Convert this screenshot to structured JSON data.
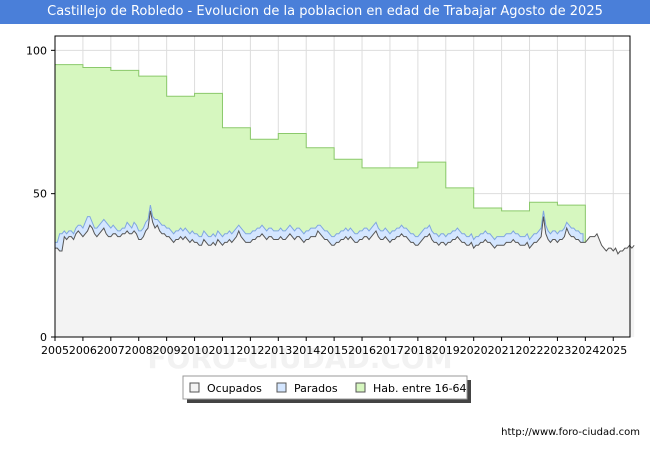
{
  "chart_data": {
    "type": "area",
    "title": "Castillejo de Robledo - Evolucion de la poblacion en edad de Trabajar Agosto de 2025",
    "xlabel": "",
    "ylabel": "",
    "xlim": [
      2005,
      2025.6
    ],
    "ylim": [
      0,
      105
    ],
    "yticks": [
      0,
      50,
      100
    ],
    "xticks": [
      "2005",
      "2006",
      "2007",
      "2008",
      "2009",
      "2010",
      "2011",
      "2012",
      "2013",
      "2014",
      "2015",
      "2016",
      "2017",
      "2018",
      "2019",
      "2020",
      "2021",
      "2022",
      "2023",
      "2024",
      "2025"
    ],
    "grid": true,
    "legend_position": "bottom",
    "series": [
      {
        "name": "Ocupados",
        "color": "#f3f3f3",
        "line_color": "#555555",
        "years": [
          2005,
          2006,
          2007,
          2008,
          2009,
          2010,
          2011,
          2012,
          2013,
          2014,
          2015,
          2016,
          2017,
          2018,
          2019,
          2020,
          2021,
          2022,
          2023,
          2024,
          2025
        ],
        "monthly": [
          [
            31,
            31,
            30,
            30,
            35,
            34,
            35,
            35,
            34,
            36,
            37,
            36
          ],
          [
            35,
            36,
            37,
            39,
            38,
            36,
            35,
            36,
            37,
            38,
            36,
            35
          ],
          [
            35,
            36,
            36,
            35,
            35,
            36,
            36,
            37,
            36,
            36,
            37,
            36
          ],
          [
            34,
            34,
            35,
            37,
            38,
            44,
            40,
            38,
            39,
            37,
            36,
            36
          ],
          [
            35,
            35,
            34,
            33,
            34,
            34,
            35,
            34,
            35,
            34,
            33,
            34
          ],
          [
            33,
            33,
            32,
            32,
            34,
            33,
            32,
            32,
            33,
            32,
            34,
            33
          ],
          [
            32,
            33,
            33,
            34,
            33,
            34,
            35,
            37,
            35,
            34,
            33,
            33
          ],
          [
            33,
            34,
            34,
            35,
            35,
            36,
            35,
            34,
            35,
            35,
            34,
            34
          ],
          [
            34,
            35,
            34,
            34,
            35,
            36,
            35,
            34,
            35,
            35,
            34,
            33
          ],
          [
            34,
            34,
            35,
            35,
            35,
            37,
            36,
            35,
            34,
            34,
            33,
            32
          ],
          [
            32,
            33,
            33,
            34,
            34,
            35,
            34,
            35,
            34,
            33,
            33,
            34
          ],
          [
            34,
            35,
            35,
            34,
            35,
            36,
            37,
            35,
            34,
            34,
            35,
            34
          ],
          [
            33,
            34,
            34,
            35,
            35,
            36,
            35,
            35,
            34,
            33,
            33,
            32
          ],
          [
            32,
            33,
            34,
            35,
            35,
            36,
            34,
            33,
            33,
            32,
            33,
            33
          ],
          [
            32,
            33,
            33,
            34,
            34,
            35,
            34,
            33,
            33,
            32,
            32,
            33
          ],
          [
            31,
            32,
            32,
            33,
            33,
            34,
            33,
            33,
            32,
            31,
            32,
            32
          ],
          [
            32,
            32,
            33,
            33,
            33,
            34,
            33,
            33,
            32,
            32,
            32,
            33
          ],
          [
            31,
            32,
            33,
            33,
            34,
            35,
            42,
            36,
            34,
            33,
            34,
            34
          ],
          [
            33,
            34,
            34,
            35,
            38,
            36,
            35,
            35,
            34,
            34,
            33,
            33
          ],
          [
            33,
            34,
            35,
            35,
            35,
            36,
            34,
            32,
            31,
            30,
            31,
            31
          ],
          [
            30,
            31,
            29,
            30,
            30,
            31,
            31,
            32,
            31,
            32,
            null,
            null
          ]
        ]
      },
      {
        "name": "Parados",
        "color": "#d4e6ff",
        "line_color": "#7fa6e0",
        "years": [
          2005,
          2006,
          2007,
          2008,
          2009,
          2010,
          2011,
          2012,
          2013,
          2014,
          2015,
          2016,
          2017,
          2018,
          2019,
          2020,
          2021,
          2022,
          2023
        ],
        "monthly": [
          [
            2,
            2,
            6,
            6,
            2,
            2,
            2,
            2,
            2,
            2,
            2,
            3
          ],
          [
            3,
            4,
            5,
            3,
            2,
            2,
            3,
            3,
            3,
            3,
            4,
            4
          ],
          [
            3,
            3,
            2,
            2,
            2,
            2,
            2,
            3,
            3,
            2,
            3,
            3
          ],
          [
            3,
            3,
            3,
            3,
            3,
            2,
            2,
            3,
            2,
            3,
            3,
            3
          ],
          [
            3,
            3,
            3,
            3,
            3,
            3,
            3,
            3,
            3,
            3,
            3,
            3
          ],
          [
            3,
            3,
            3,
            3,
            3,
            3,
            3,
            3,
            3,
            3,
            3,
            3
          ],
          [
            3,
            3,
            3,
            3,
            3,
            3,
            3,
            2,
            3,
            3,
            3,
            3
          ],
          [
            3,
            3,
            3,
            3,
            3,
            3,
            3,
            3,
            3,
            3,
            3,
            3
          ],
          [
            3,
            3,
            3,
            3,
            3,
            3,
            3,
            3,
            3,
            3,
            3,
            3
          ],
          [
            3,
            3,
            3,
            3,
            3,
            2,
            3,
            3,
            3,
            3,
            3,
            3
          ],
          [
            3,
            3,
            3,
            3,
            3,
            3,
            3,
            3,
            3,
            3,
            3,
            3
          ],
          [
            3,
            3,
            3,
            3,
            3,
            3,
            3,
            3,
            3,
            3,
            3,
            3
          ],
          [
            3,
            3,
            3,
            3,
            3,
            3,
            3,
            3,
            3,
            3,
            3,
            3
          ],
          [
            3,
            3,
            3,
            3,
            3,
            3,
            3,
            3,
            3,
            3,
            3,
            3
          ],
          [
            3,
            3,
            3,
            3,
            3,
            3,
            3,
            3,
            3,
            3,
            3,
            3
          ],
          [
            3,
            3,
            3,
            3,
            3,
            3,
            3,
            3,
            3,
            3,
            3,
            3
          ],
          [
            3,
            3,
            3,
            3,
            3,
            3,
            3,
            3,
            3,
            3,
            3,
            3
          ],
          [
            3,
            3,
            3,
            3,
            3,
            3,
            2,
            3,
            3,
            3,
            3,
            3
          ],
          [
            3,
            3,
            3,
            3,
            2,
            3,
            3,
            3,
            3,
            3,
            3,
            3
          ]
        ]
      },
      {
        "name": "Hab. entre 16-64",
        "color": "#d6f7bf",
        "line_color": "#8bc96b",
        "years": [
          2005,
          2006,
          2007,
          2008,
          2009,
          2010,
          2011,
          2012,
          2013,
          2014,
          2015,
          2016,
          2017,
          2018,
          2019,
          2020,
          2021,
          2022,
          2023
        ],
        "values": [
          95,
          94,
          93,
          91,
          84,
          85,
          73,
          69,
          71,
          66,
          62,
          59,
          59,
          61,
          52,
          45,
          44,
          47,
          46
        ]
      }
    ]
  },
  "legend": {
    "items": [
      {
        "label": "Ocupados",
        "color": "#f3f3f3"
      },
      {
        "label": "Parados",
        "color": "#d4e6ff"
      },
      {
        "label": "Hab. entre 16-64",
        "color": "#d6f7bf"
      }
    ]
  },
  "footer": {
    "url": "http://www.foro-ciudad.com"
  },
  "watermark": {
    "text": "FORO-CIUDAD.COM"
  }
}
